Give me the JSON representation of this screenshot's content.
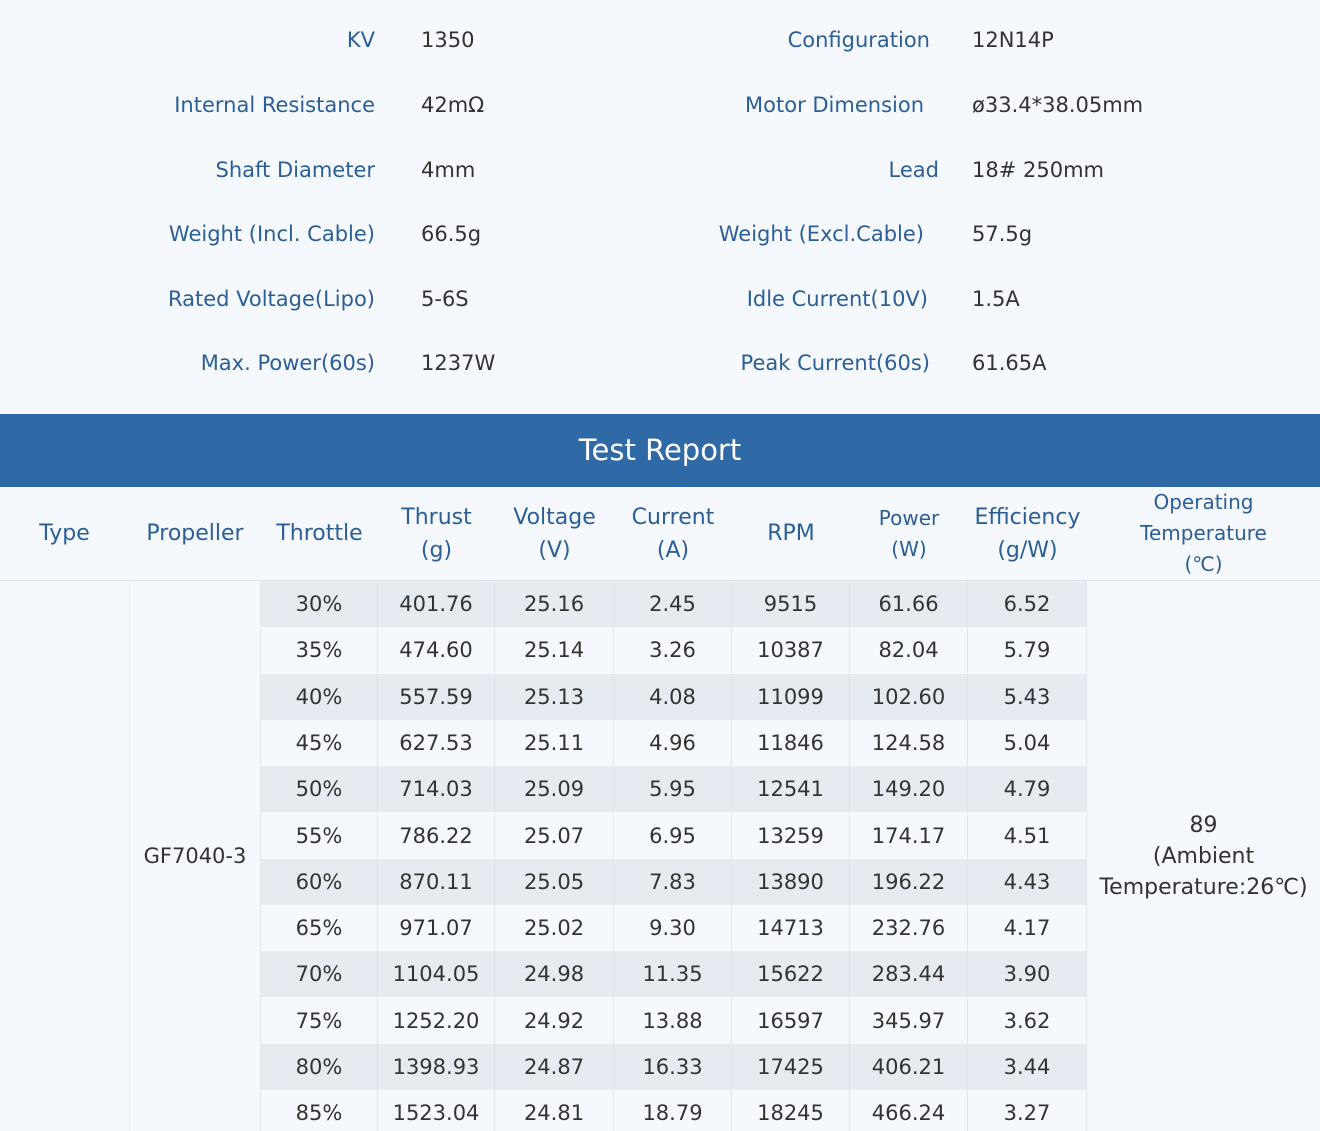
{
  "specs": {
    "left": [
      {
        "label": "KV",
        "value": "1350"
      },
      {
        "label": "Internal Resistance",
        "value": "42mΩ"
      },
      {
        "label": "Shaft Diameter",
        "value": "4mm"
      },
      {
        "label": "Weight (Incl. Cable)",
        "value": "66.5g"
      },
      {
        "label": "Rated Voltage(Lipo)",
        "value": "5-6S"
      },
      {
        "label": "Max. Power(60s)",
        "value": "1237W"
      }
    ],
    "right": [
      {
        "label": "Configuration",
        "value": "12N14P"
      },
      {
        "label": "Motor Dimension",
        "value": "ø33.4*38.05mm"
      },
      {
        "label": "Lead",
        "value": "18# 250mm"
      },
      {
        "label": "Weight (Excl.Cable)",
        "value": "57.5g"
      },
      {
        "label": "Idle Current(10V)",
        "value": "1.5A"
      },
      {
        "label": "Peak Current(60s)",
        "value": "61.65A"
      }
    ]
  },
  "banner": {
    "title": "Test Report"
  },
  "table": {
    "headers": {
      "type": "Type",
      "propeller": "Propeller",
      "throttle": "Throttle",
      "thrust": [
        "Thrust",
        "(g)"
      ],
      "voltage": [
        "Voltage",
        "(V)"
      ],
      "current": [
        "Current",
        "(A)"
      ],
      "rpm": "RPM",
      "power": [
        "Power",
        "(W)"
      ],
      "efficiency": [
        "Efficiency",
        "(g/W)"
      ],
      "temperature": [
        "Operating",
        "Temperature",
        "(℃)"
      ]
    },
    "type_value": "",
    "propeller_value": "GF7040-3",
    "temperature_value": [
      "89",
      "(Ambient",
      "Temperature:26℃)"
    ],
    "rows": [
      [
        "30%",
        "401.76",
        "25.16",
        "2.45",
        "9515",
        "61.66",
        "6.52"
      ],
      [
        "35%",
        "474.60",
        "25.14",
        "3.26",
        "10387",
        "82.04",
        "5.79"
      ],
      [
        "40%",
        "557.59",
        "25.13",
        "4.08",
        "11099",
        "102.60",
        "5.43"
      ],
      [
        "45%",
        "627.53",
        "25.11",
        "4.96",
        "11846",
        "124.58",
        "5.04"
      ],
      [
        "50%",
        "714.03",
        "25.09",
        "5.95",
        "12541",
        "149.20",
        "4.79"
      ],
      [
        "55%",
        "786.22",
        "25.07",
        "6.95",
        "13259",
        "174.17",
        "4.51"
      ],
      [
        "60%",
        "870.11",
        "25.05",
        "7.83",
        "13890",
        "196.22",
        "4.43"
      ],
      [
        "65%",
        "971.07",
        "25.02",
        "9.30",
        "14713",
        "232.76",
        "4.17"
      ],
      [
        "70%",
        "1104.05",
        "24.98",
        "11.35",
        "15622",
        "283.44",
        "3.90"
      ],
      [
        "75%",
        "1252.20",
        "24.92",
        "13.88",
        "16597",
        "345.97",
        "3.62"
      ],
      [
        "80%",
        "1398.93",
        "24.87",
        "16.33",
        "17425",
        "406.21",
        "3.44"
      ],
      [
        "85%",
        "1523.04",
        "24.81",
        "18.79",
        "18245",
        "466.24",
        "3.27"
      ]
    ]
  }
}
